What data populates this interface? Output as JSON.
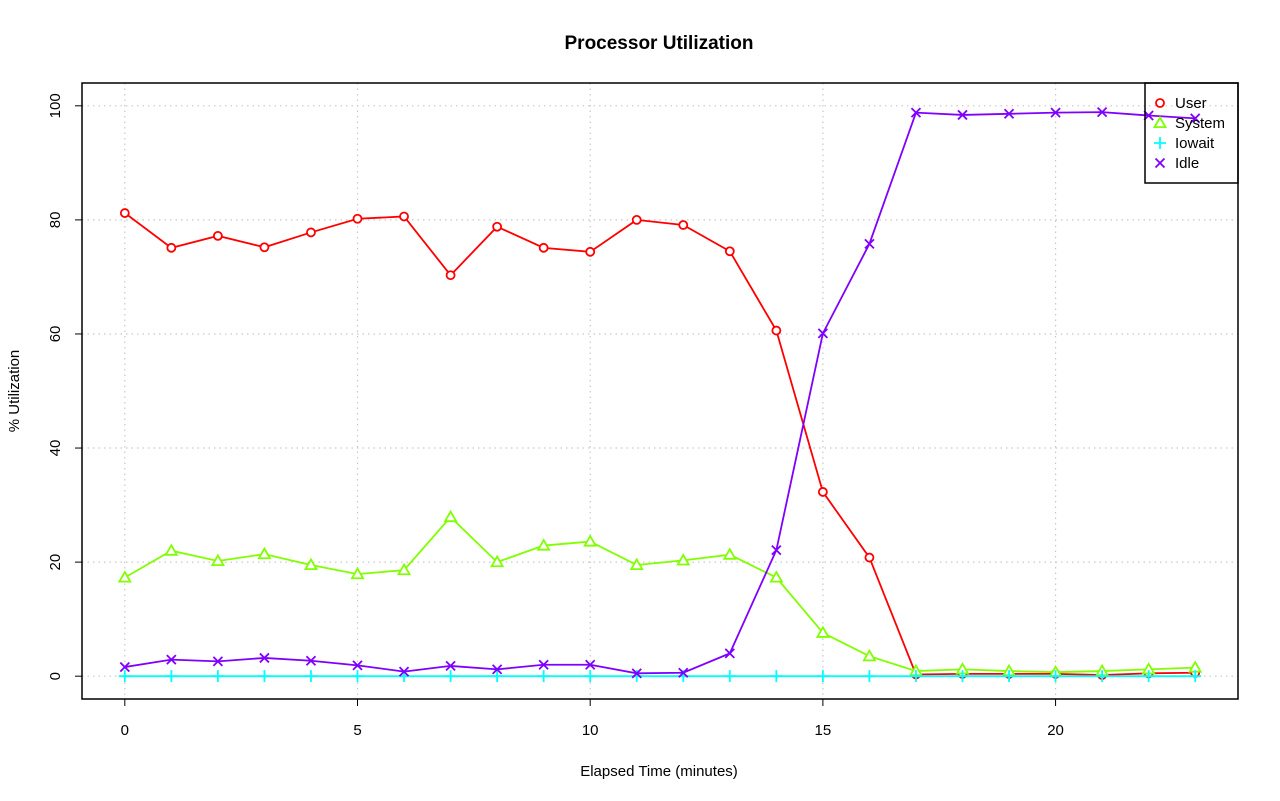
{
  "chart_data": {
    "type": "line",
    "title": "Processor Utilization",
    "xlabel": "Elapsed Time (minutes)",
    "ylabel": "% Utilization",
    "xlim": [
      -0.92,
      23.92
    ],
    "ylim": [
      -4,
      104
    ],
    "x_ticks": [
      0,
      5,
      10,
      15,
      20
    ],
    "y_ticks": [
      0,
      20,
      40,
      60,
      80,
      100
    ],
    "grid": true,
    "legend_position": "top-right",
    "x": [
      0,
      1,
      2,
      3,
      4,
      5,
      6,
      7,
      8,
      9,
      10,
      11,
      12,
      13,
      14,
      15,
      16,
      17,
      18,
      19,
      20,
      21,
      22,
      23
    ],
    "series": [
      {
        "name": "User",
        "color": "#ff0000",
        "marker": "circle",
        "values": [
          81.2,
          75.1,
          77.2,
          75.2,
          77.8,
          80.2,
          80.6,
          70.3,
          78.8,
          75.1,
          74.4,
          80.0,
          79.1,
          74.5,
          60.6,
          32.3,
          20.8,
          0.3,
          0.4,
          0.4,
          0.4,
          0.2,
          0.5,
          0.6
        ]
      },
      {
        "name": "System",
        "color": "#80ff00",
        "marker": "triangle",
        "values": [
          17.3,
          22.0,
          20.2,
          21.4,
          19.5,
          17.9,
          18.6,
          27.9,
          20.0,
          22.9,
          23.6,
          19.5,
          20.3,
          21.3,
          17.3,
          7.6,
          3.5,
          0.9,
          1.2,
          0.9,
          0.7,
          0.9,
          1.2,
          1.5
        ]
      },
      {
        "name": "Iowait",
        "color": "#00ffff",
        "marker": "plus",
        "values": [
          0,
          0,
          0,
          0,
          0,
          0,
          0,
          0,
          0,
          0,
          0,
          0,
          0,
          0,
          0,
          0,
          0,
          0,
          0,
          0,
          0,
          0,
          0,
          0
        ]
      },
      {
        "name": "Idle",
        "color": "#8000ff",
        "marker": "cross",
        "values": [
          1.6,
          2.9,
          2.6,
          3.2,
          2.7,
          1.9,
          0.8,
          1.8,
          1.2,
          2.0,
          2.0,
          0.5,
          0.6,
          4.0,
          22.1,
          60.1,
          75.8,
          98.8,
          98.4,
          98.6,
          98.8,
          98.9,
          98.3,
          97.8
        ]
      }
    ]
  }
}
